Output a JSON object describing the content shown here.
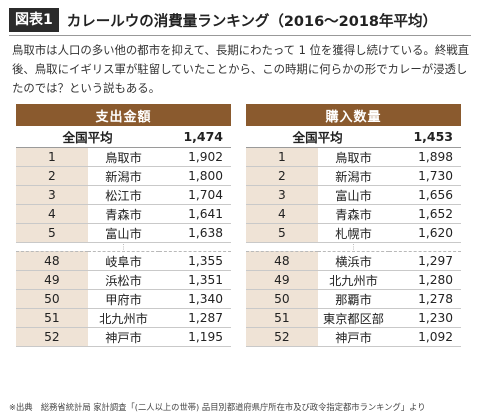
{
  "header": {
    "badge": "図表1",
    "title": "カレールウの消費量ランキング（2016〜2018年平均）"
  },
  "intro": "鳥取市は人口の多い他の都市を抑えて、長期にわたって 1 位を獲得し続けている。終戦直後、鳥取にイギリス軍が駐留していたことから、この時期に何らかの形でカレーが浸透したのでは？という説もある。",
  "tables": [
    {
      "caption": "支出金額",
      "average_label": "全国平均",
      "average_value": "1,474",
      "top_rows": [
        {
          "rank": "1",
          "city": "鳥取市",
          "value": "1,902"
        },
        {
          "rank": "2",
          "city": "新潟市",
          "value": "1,800"
        },
        {
          "rank": "3",
          "city": "松江市",
          "value": "1,704"
        },
        {
          "rank": "4",
          "city": "青森市",
          "value": "1,641"
        },
        {
          "rank": "5",
          "city": "富山市",
          "value": "1,638"
        }
      ],
      "bottom_rows": [
        {
          "rank": "48",
          "city": "岐阜市",
          "value": "1,355"
        },
        {
          "rank": "49",
          "city": "浜松市",
          "value": "1,351"
        },
        {
          "rank": "50",
          "city": "甲府市",
          "value": "1,340"
        },
        {
          "rank": "51",
          "city": "北九州市",
          "value": "1,287"
        },
        {
          "rank": "52",
          "city": "神戸市",
          "value": "1,195"
        }
      ]
    },
    {
      "caption": "購入数量",
      "average_label": "全国平均",
      "average_value": "1,453",
      "top_rows": [
        {
          "rank": "1",
          "city": "鳥取市",
          "value": "1,898"
        },
        {
          "rank": "2",
          "city": "新潟市",
          "value": "1,730"
        },
        {
          "rank": "3",
          "city": "富山市",
          "value": "1,656"
        },
        {
          "rank": "4",
          "city": "青森市",
          "value": "1,652"
        },
        {
          "rank": "5",
          "city": "札幌市",
          "value": "1,620"
        }
      ],
      "bottom_rows": [
        {
          "rank": "48",
          "city": "横浜市",
          "value": "1,297"
        },
        {
          "rank": "49",
          "city": "北九州市",
          "value": "1,280"
        },
        {
          "rank": "50",
          "city": "那覇市",
          "value": "1,278"
        },
        {
          "rank": "51",
          "city": "東京都区部",
          "value": "1,230"
        },
        {
          "rank": "52",
          "city": "神戸市",
          "value": "1,092"
        }
      ]
    }
  ],
  "source": "※出典　総務省統計局 家計調査「(二人以上の世帯) 品目別都道府県庁所在市及び政令指定都市ランキング」より",
  "colors": {
    "caption_bg": "#8a5a2e",
    "rank_bg": "#efe3d6",
    "badge_bg": "#2b2b2b"
  }
}
